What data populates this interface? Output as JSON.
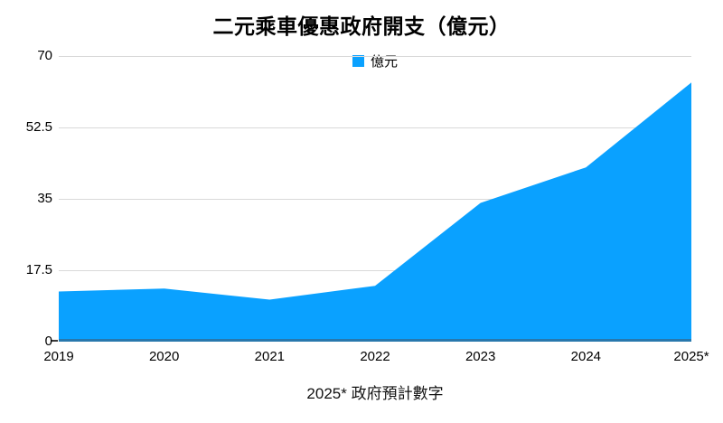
{
  "title": "二元乘車優惠政府開支（億元）",
  "legend": {
    "label": "億元"
  },
  "footer_note": "2025* 政府預計數字",
  "colors": {
    "area_fill": "#0aa1ff",
    "baseline": "#2878ad",
    "gridline": "#d9d9d9",
    "label_text": "#000000"
  },
  "chart_data": {
    "type": "area",
    "title": "二元乘車優惠政府開支（億元）",
    "categories": [
      "2019",
      "2020",
      "2021",
      "2022",
      "2023",
      "2024",
      "2025*"
    ],
    "series": [
      {
        "name": "億元",
        "values": [
          12.3,
          13,
          10.3,
          13.7,
          34,
          42.7,
          63.5
        ]
      }
    ],
    "xlabel": "",
    "ylabel": "",
    "ylim": [
      0,
      70
    ],
    "yticks": [
      0,
      17.5,
      35,
      52.5,
      70
    ],
    "grid": true,
    "legend_position": "top-center",
    "annotation": "2025* 政府預計數字"
  }
}
